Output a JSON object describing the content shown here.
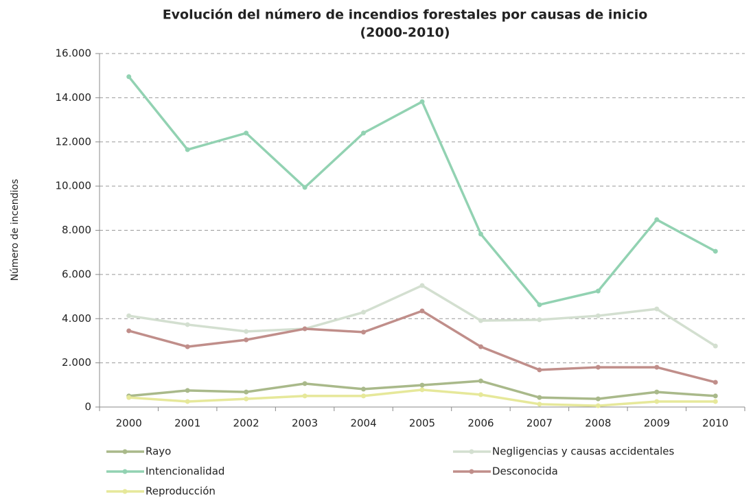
{
  "chart_data": {
    "type": "line",
    "title": [
      "Evolución del número de incendios forestales por causas de inicio",
      "(2000-2010)"
    ],
    "y_label": "Número de incendios",
    "categories": [
      "2000",
      "2001",
      "2002",
      "2003",
      "2004",
      "2005",
      "2006",
      "2007",
      "2008",
      "2009",
      "2010"
    ],
    "series": [
      {
        "name": "Rayo",
        "color": "#a9b98a",
        "values": [
          500,
          750,
          680,
          1060,
          810,
          990,
          1180,
          430,
          370,
          680,
          500
        ]
      },
      {
        "name": "Negligencias y causas accidentales",
        "color": "#d3dfd0",
        "values": [
          4130,
          3730,
          3420,
          3540,
          4290,
          5500,
          3910,
          3950,
          4130,
          4440,
          2760
        ]
      },
      {
        "name": "Intencionalidad",
        "color": "#92d2b2",
        "values": [
          14950,
          11650,
          12400,
          9940,
          12400,
          13820,
          7830,
          4630,
          5250,
          8480,
          7050
        ]
      },
      {
        "name": "Desconocida",
        "color": "#c08e8a",
        "values": [
          3450,
          2730,
          3040,
          3540,
          3390,
          4350,
          2730,
          1680,
          1800,
          1800,
          1120
        ]
      },
      {
        "name": "Reproducción",
        "color": "#e6e89a",
        "values": [
          430,
          250,
          370,
          500,
          500,
          780,
          560,
          130,
          60,
          250,
          250
        ]
      }
    ],
    "ylim": [
      0,
      16000
    ],
    "yticks": [
      0,
      {
        "value": 2000,
        "label": "2.000"
      },
      {
        "value": 4000,
        "label": "4.000"
      },
      {
        "value": 6000,
        "label": "6.000"
      },
      {
        "value": 8000,
        "label": "8.000"
      },
      {
        "value": 10000,
        "label": "10.000"
      },
      {
        "value": 12000,
        "label": "12.000"
      },
      {
        "value": 14000,
        "label": "14.000"
      },
      {
        "value": 16000,
        "label": "16.000"
      }
    ],
    "grid": true,
    "legend": "bottom"
  }
}
